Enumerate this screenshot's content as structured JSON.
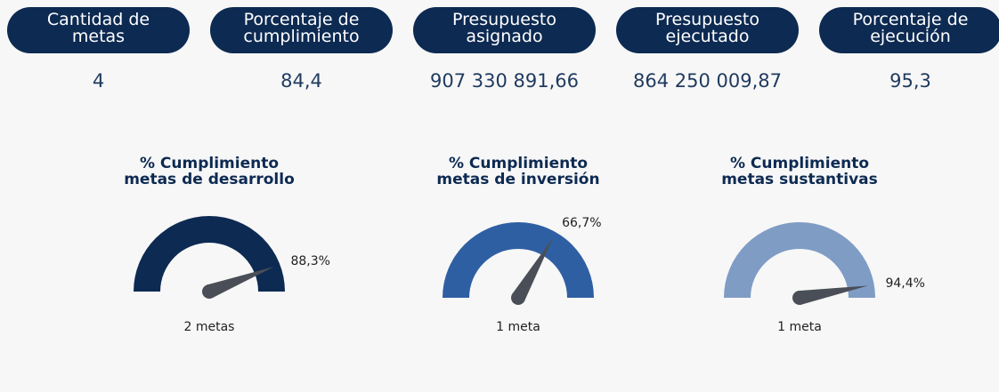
{
  "kpis": [
    {
      "label": [
        "Cantidad de",
        "metas"
      ],
      "value": "4"
    },
    {
      "label": [
        "Porcentaje de",
        "cumplimiento"
      ],
      "value": "84,4"
    },
    {
      "label": [
        "Presupuesto",
        "asignado"
      ],
      "value": "907 330 891,66"
    },
    {
      "label": [
        "Presupuesto",
        "ejecutado"
      ],
      "value": "864 250 009,87"
    },
    {
      "label": [
        "Porcentaje de",
        "ejecución"
      ],
      "value": "95,3"
    }
  ],
  "gauges": [
    {
      "type": "gauge",
      "title": [
        "% Cumplimiento",
        "metas de desarrollo"
      ],
      "value": 88.3,
      "value_label": "88,3%",
      "range": [
        0,
        100
      ],
      "color": "#0d2a52",
      "footer": "2 metas"
    },
    {
      "type": "gauge",
      "title": [
        "% Cumplimiento",
        "metas de inversión"
      ],
      "value": 66.7,
      "value_label": "66,7%",
      "range": [
        0,
        100
      ],
      "color": "#2f5fa3",
      "footer": "1 meta"
    },
    {
      "type": "gauge",
      "title": [
        "% Cumplimiento",
        "metas sustantivas"
      ],
      "value": 94.4,
      "value_label": "94,4%",
      "range": [
        0,
        100
      ],
      "color": "#7f9cc5",
      "footer": "1 meta"
    }
  ]
}
